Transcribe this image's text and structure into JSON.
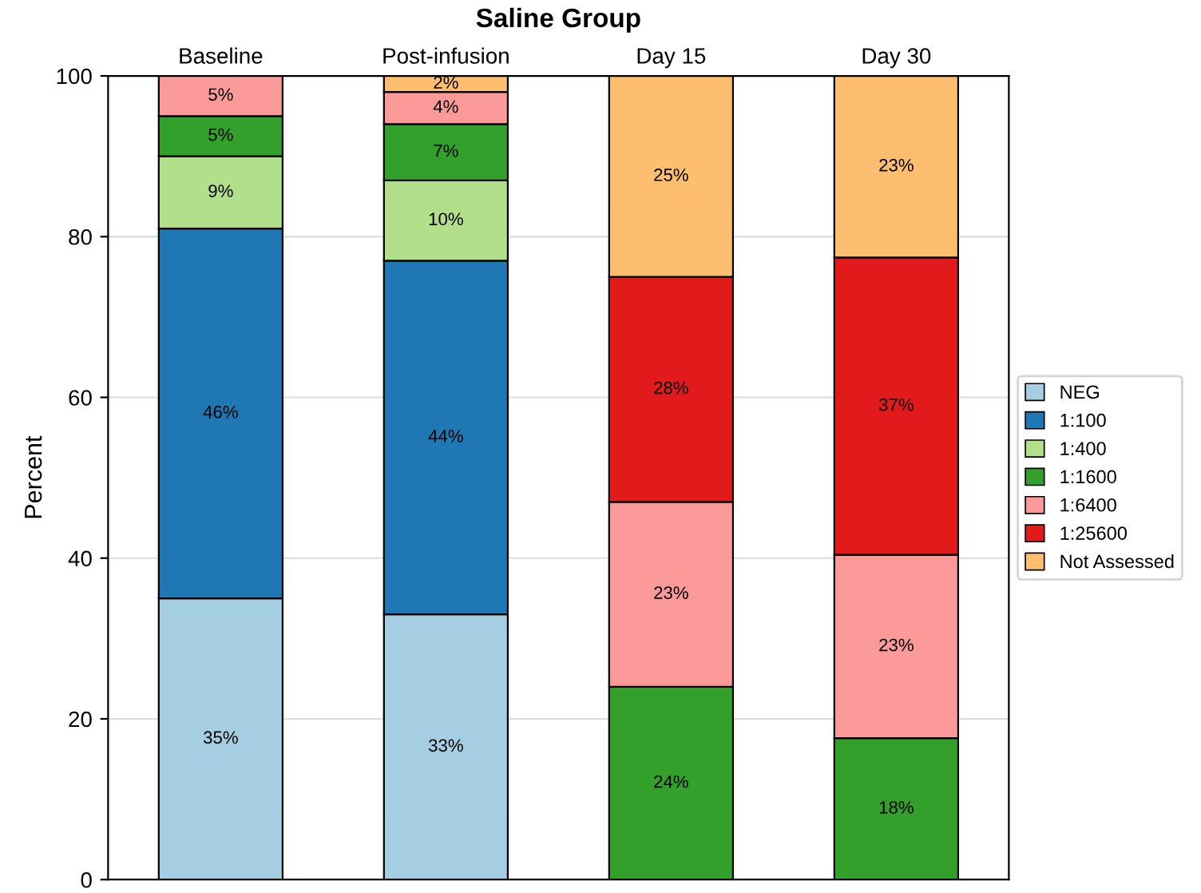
{
  "chart_data": {
    "type": "bar",
    "title": "Saline Group",
    "ylabel": "Percent",
    "stacked": true,
    "categories": [
      "Baseline",
      "Post-infusion",
      "Day 15",
      "Day 30"
    ],
    "series": [
      {
        "name": "NEG",
        "color": "#a6cee3",
        "values": [
          35,
          33,
          null,
          null
        ],
        "value_labels": [
          "35%",
          "33%",
          null,
          null
        ]
      },
      {
        "name": "1:100",
        "color": "#1f78b4",
        "values": [
          46,
          44,
          null,
          null
        ],
        "value_labels": [
          "46%",
          "44%",
          null,
          null
        ]
      },
      {
        "name": "1:400",
        "color": "#b2df8a",
        "values": [
          9,
          10,
          null,
          null
        ],
        "value_labels": [
          "9%",
          "10%",
          null,
          null
        ]
      },
      {
        "name": "1:1600",
        "color": "#33a02c",
        "values": [
          5,
          7,
          24,
          17.6
        ],
        "value_labels": [
          "5%",
          "7%",
          "24%",
          "18%"
        ]
      },
      {
        "name": "1:6400",
        "color": "#fb9a99",
        "values": [
          5,
          4,
          23,
          22.8
        ],
        "value_labels": [
          "5%",
          "4%",
          "23%",
          "23%"
        ]
      },
      {
        "name": "1:25600",
        "color": "#e31a1c",
        "values": [
          null,
          null,
          28,
          37
        ],
        "value_labels": [
          null,
          null,
          "28%",
          "37%"
        ]
      },
      {
        "name": "Not Assessed",
        "color": "#fdbf6f",
        "values": [
          null,
          2,
          25,
          22.6
        ],
        "value_labels": [
          null,
          "2%",
          "25%",
          "23%"
        ]
      }
    ],
    "ylim": [
      0,
      100
    ],
    "yticks": [
      0,
      20,
      40,
      60,
      80,
      100
    ],
    "grid": "y",
    "legend": "right"
  }
}
